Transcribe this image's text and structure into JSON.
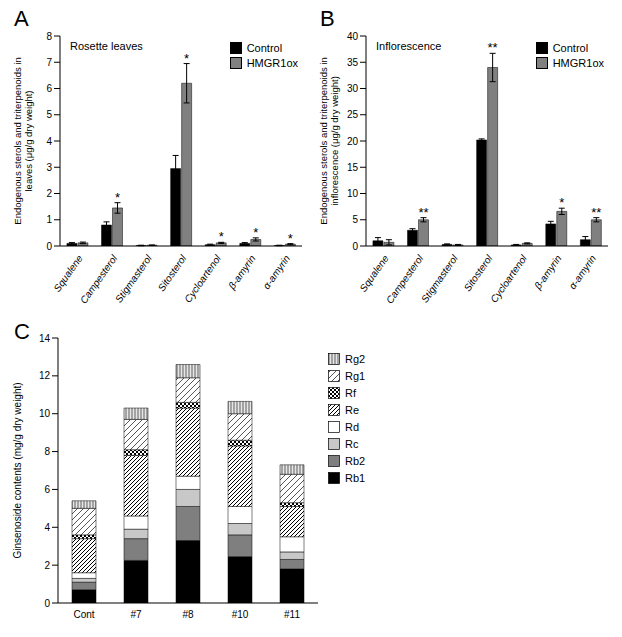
{
  "chart_data": [
    {
      "type": "bar",
      "title": "A",
      "subtitle": "Rosette leaves",
      "y_label": "Endogenous sterols and triterpenoids in leaves (μg/g dry weight)",
      "categories": [
        "Squalene",
        "Campesterol",
        "Stigmasterol",
        "Sitosterol",
        "Cycloartenol",
        "β-amyrin",
        "α-amyrin"
      ],
      "series": [
        {
          "name": "Control",
          "color": "#000000",
          "values": [
            0.1,
            0.8,
            0.02,
            2.95,
            0.05,
            0.1,
            0.02
          ],
          "errors": [
            0.03,
            0.12,
            0.01,
            0.5,
            0.02,
            0.03,
            0.01
          ]
        },
        {
          "name": "HMGR1ox",
          "color": "#808080",
          "values": [
            0.12,
            1.45,
            0.03,
            6.2,
            0.12,
            0.25,
            0.07
          ],
          "errors": [
            0.03,
            0.2,
            0.01,
            0.75,
            0.02,
            0.06,
            0.02
          ]
        }
      ],
      "annotations": [
        {
          "category": "Campesterol",
          "series": "HMGR1ox",
          "text": "*"
        },
        {
          "category": "Sitosterol",
          "series": "HMGR1ox",
          "text": "*"
        },
        {
          "category": "Cycloartenol",
          "series": "HMGR1ox",
          "text": "*"
        },
        {
          "category": "β-amyrin",
          "series": "HMGR1ox",
          "text": "*"
        },
        {
          "category": "α-amyrin",
          "series": "HMGR1ox",
          "text": "*"
        }
      ],
      "ylim": [
        0,
        8
      ],
      "yticks": [
        0,
        1,
        2,
        3,
        4,
        5,
        6,
        7,
        8
      ],
      "grid": false,
      "legend": "top-right"
    },
    {
      "type": "bar",
      "title": "B",
      "subtitle": "Inflorescence",
      "y_label": "Endogenous sterols and triterpenoids in inflorescence (μg/g dry weight)",
      "categories": [
        "Squalene",
        "Campesterol",
        "Stigmasterol",
        "Sitosterol",
        "Cycloartenol",
        "β-amyrin",
        "α-amyrin"
      ],
      "series": [
        {
          "name": "Control",
          "color": "#000000",
          "values": [
            1.0,
            3.0,
            0.3,
            20.2,
            0.2,
            4.2,
            1.2
          ],
          "errors": [
            0.6,
            0.3,
            0.1,
            0.2,
            0.1,
            0.5,
            0.6
          ]
        },
        {
          "name": "HMGR1ox",
          "color": "#808080",
          "values": [
            0.7,
            5.0,
            0.2,
            34.0,
            0.5,
            6.6,
            5.0
          ],
          "errors": [
            0.5,
            0.4,
            0.1,
            2.7,
            0.1,
            0.6,
            0.4
          ]
        }
      ],
      "annotations": [
        {
          "category": "Campesterol",
          "series": "HMGR1ox",
          "text": "**"
        },
        {
          "category": "Sitosterol",
          "series": "HMGR1ox",
          "text": "**"
        },
        {
          "category": "β-amyrin",
          "series": "HMGR1ox",
          "text": "*"
        },
        {
          "category": "α-amyrin",
          "series": "HMGR1ox",
          "text": "**"
        }
      ],
      "ylim": [
        0,
        40
      ],
      "yticks": [
        0,
        5,
        10,
        15,
        20,
        25,
        30,
        35,
        40
      ],
      "grid": false,
      "legend": "top-right"
    },
    {
      "type": "bar",
      "title": "C",
      "stacked": true,
      "y_label": "Ginsenoside contents (mg/g dry weight)",
      "categories": [
        "Cont",
        "#7",
        "#8",
        "#10",
        "#11"
      ],
      "series": [
        {
          "name": "Rb1",
          "color": "#000000",
          "values": [
            0.7,
            2.25,
            3.3,
            2.45,
            1.8
          ]
        },
        {
          "name": "Rb2",
          "color": "#7f7f7f",
          "values": [
            0.4,
            1.15,
            1.8,
            1.15,
            0.5
          ]
        },
        {
          "name": "Rc",
          "color": "#c8c8c8",
          "values": [
            0.2,
            0.5,
            0.9,
            0.6,
            0.4
          ]
        },
        {
          "name": "Rd",
          "color": "#ffffff",
          "values": [
            0.3,
            0.7,
            0.7,
            0.9,
            0.8
          ]
        },
        {
          "name": "Re",
          "color": "#000000",
          "values": [
            1.8,
            3.2,
            3.6,
            3.2,
            1.6
          ]
        },
        {
          "name": "Rf",
          "color": "#000000",
          "values": [
            0.2,
            0.3,
            0.3,
            0.3,
            0.2
          ]
        },
        {
          "name": "Rg1",
          "color": "#555555",
          "values": [
            1.4,
            1.6,
            1.3,
            1.4,
            1.5
          ]
        },
        {
          "name": "Rg2",
          "color": "#808080",
          "values": [
            0.4,
            0.6,
            0.7,
            0.65,
            0.5
          ]
        }
      ],
      "ylim": [
        0,
        14
      ],
      "yticks": [
        0,
        2,
        4,
        6,
        8,
        10,
        12,
        14
      ],
      "grid": false,
      "legend": "right"
    }
  ]
}
